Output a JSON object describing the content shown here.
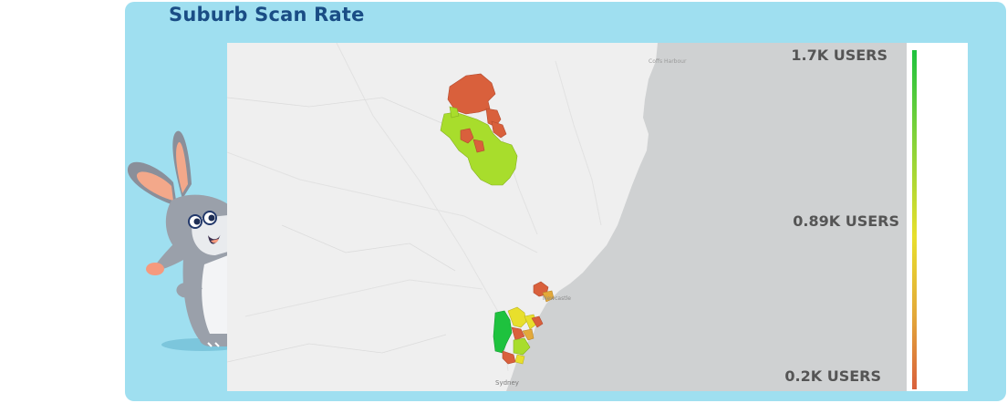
{
  "card": {
    "title": "Suburb Scan Rate"
  },
  "map": {
    "places": {
      "coffs": "Coffs Harbour",
      "newcastle": "Newcastle",
      "sydney": "Sydney"
    },
    "colors": {
      "land": "#efefef",
      "ocean": "#cfd1d2",
      "high": "#1ec23e",
      "mid_high": "#a8dd2c",
      "mid": "#e8df2c",
      "low": "#d9603c"
    }
  },
  "legend": {
    "max_label": "1.7K USERS",
    "mid_label": "0.89K USERS",
    "min_label": "0.2K USERS",
    "max_value": 1.7,
    "mid_value": 0.89,
    "min_value": 0.2,
    "unit": "K USERS"
  }
}
